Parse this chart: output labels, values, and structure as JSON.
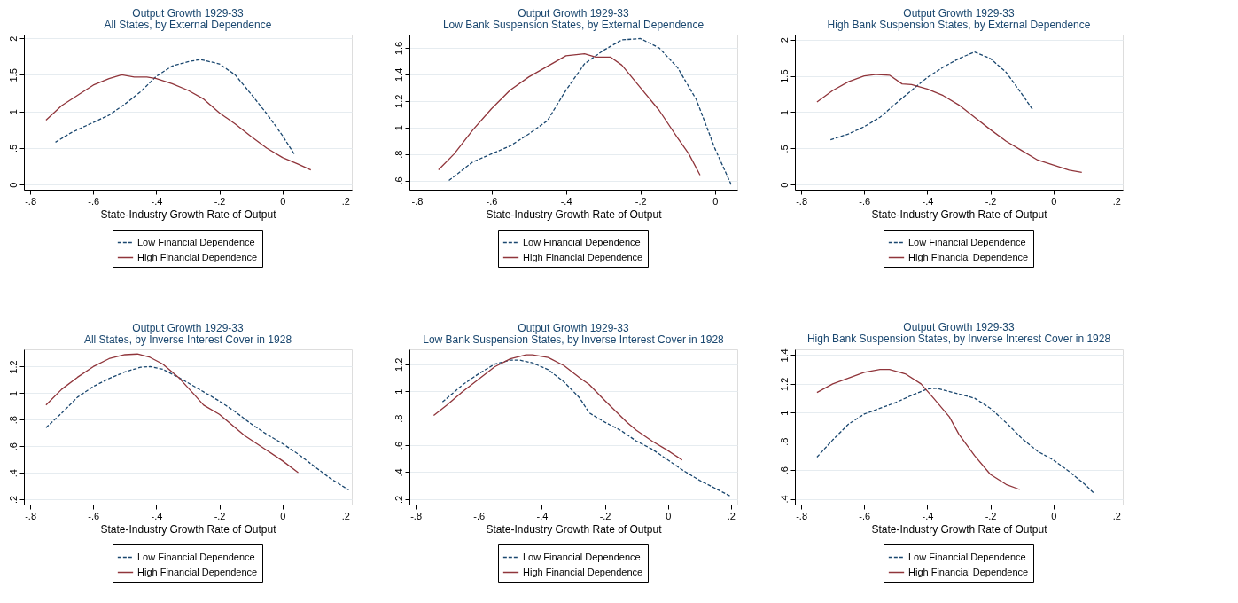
{
  "chart_data": [
    {
      "type": "line",
      "title": "Output Growth 1929-33",
      "subtitle": "All States, by External Dependence",
      "xlabel": "State-Industry Growth Rate of Output",
      "grid": "y",
      "legend": "bottom",
      "marker": "none",
      "xlim": [
        -0.82,
        0.22
      ],
      "xticks": [
        {
          "value": -0.8,
          "label": "-.8"
        },
        {
          "value": -0.6,
          "label": "-.6"
        },
        {
          "value": -0.4,
          "label": "-.4"
        },
        {
          "value": -0.2,
          "label": "-.2"
        },
        0,
        {
          "value": 0.2,
          "label": ".2"
        }
      ],
      "ylim": [
        -0.07,
        2.05
      ],
      "yticks": [
        0,
        {
          "value": 0.5,
          "label": ".5"
        },
        1,
        1.5,
        2
      ],
      "series": [
        {
          "name": "Low Financial Dependence",
          "color": "#1a476f",
          "line_style": "dashed",
          "x": [
            -0.72,
            -0.67,
            -0.6,
            -0.55,
            -0.5,
            -0.45,
            -0.4,
            -0.35,
            -0.3,
            -0.26,
            -0.2,
            -0.15,
            -0.1,
            -0.05,
            0,
            0.04
          ],
          "values": [
            0.58,
            0.71,
            0.85,
            0.95,
            1.1,
            1.27,
            1.48,
            1.62,
            1.68,
            1.71,
            1.65,
            1.5,
            1.24,
            0.97,
            0.67,
            0.4
          ]
        },
        {
          "name": "High Financial Dependence",
          "color": "#90353b",
          "line_style": "solid",
          "x": [
            -0.75,
            -0.7,
            -0.65,
            -0.6,
            -0.55,
            -0.51,
            -0.47,
            -0.43,
            -0.4,
            -0.35,
            -0.3,
            -0.25,
            -0.2,
            -0.15,
            -0.1,
            -0.05,
            0,
            0.05,
            0.09
          ],
          "values": [
            0.88,
            1.08,
            1.22,
            1.36,
            1.45,
            1.5,
            1.47,
            1.47,
            1.45,
            1.38,
            1.29,
            1.17,
            0.98,
            0.83,
            0.66,
            0.5,
            0.37,
            0.28,
            0.2
          ]
        }
      ]
    },
    {
      "type": "line",
      "title": "Output Growth 1929-33",
      "subtitle": "Low Bank Suspension States, by External Dependence",
      "xlabel": "State-Industry Growth Rate of Output",
      "grid": "y",
      "legend": "bottom",
      "marker": "none",
      "xlim": [
        -0.82,
        0.06
      ],
      "xticks": [
        {
          "value": -0.8,
          "label": "-.8"
        },
        {
          "value": -0.6,
          "label": "-.6"
        },
        {
          "value": -0.4,
          "label": "-.4"
        },
        {
          "value": -0.2,
          "label": "-.2"
        },
        0
      ],
      "ylim": [
        0.53,
        1.7
      ],
      "yticks": [
        {
          "value": 0.6,
          "label": ".6"
        },
        {
          "value": 0.8,
          "label": ".8"
        },
        1,
        1.2,
        1.4,
        1.6
      ],
      "series": [
        {
          "name": "Low Financial Dependence",
          "color": "#1a476f",
          "line_style": "dashed",
          "x": [
            -0.714,
            -0.7,
            -0.65,
            -0.6,
            -0.55,
            -0.5,
            -0.45,
            -0.4,
            -0.35,
            -0.3,
            -0.25,
            -0.2,
            -0.15,
            -0.1,
            -0.05,
            0,
            0.045
          ],
          "values": [
            0.6,
            0.63,
            0.74,
            0.8,
            0.86,
            0.95,
            1.05,
            1.28,
            1.48,
            1.58,
            1.66,
            1.67,
            1.6,
            1.45,
            1.21,
            0.84,
            0.56
          ]
        },
        {
          "name": "High Financial Dependence",
          "color": "#90353b",
          "line_style": "solid",
          "x": [
            -0.742,
            -0.7,
            -0.65,
            -0.6,
            -0.55,
            -0.5,
            -0.45,
            -0.4,
            -0.35,
            -0.32,
            -0.28,
            -0.25,
            -0.2,
            -0.15,
            -0.1,
            -0.07,
            -0.04
          ],
          "values": [
            0.68,
            0.8,
            0.98,
            1.14,
            1.28,
            1.38,
            1.46,
            1.54,
            1.555,
            1.53,
            1.53,
            1.47,
            1.3,
            1.13,
            0.92,
            0.8,
            0.64
          ]
        }
      ]
    },
    {
      "type": "line",
      "title": "Output Growth 1929-33",
      "subtitle": "High Bank Suspension States, by External Dependence",
      "xlabel": "State-Industry Growth Rate of Output",
      "grid": "y",
      "legend": "bottom",
      "marker": "none",
      "xlim": [
        -0.82,
        0.22
      ],
      "xticks": [
        {
          "value": -0.8,
          "label": "-.8"
        },
        {
          "value": -0.6,
          "label": "-.6"
        },
        {
          "value": -0.4,
          "label": "-.4"
        },
        {
          "value": -0.2,
          "label": "-.2"
        },
        0,
        {
          "value": 0.2,
          "label": ".2"
        }
      ],
      "ylim": [
        -0.07,
        2.07
      ],
      "yticks": [
        0,
        {
          "value": 0.5,
          "label": ".5"
        },
        1,
        1.5,
        2
      ],
      "series": [
        {
          "name": "Low Financial Dependence",
          "color": "#1a476f",
          "line_style": "dashed",
          "x": [
            -0.707,
            -0.65,
            -0.6,
            -0.55,
            -0.5,
            -0.45,
            -0.4,
            -0.35,
            -0.3,
            -0.25,
            -0.2,
            -0.15,
            -0.1,
            -0.065
          ],
          "values": [
            0.62,
            0.7,
            0.8,
            0.93,
            1.12,
            1.3,
            1.48,
            1.62,
            1.74,
            1.83,
            1.74,
            1.55,
            1.25,
            1.03
          ]
        },
        {
          "name": "High Financial Dependence",
          "color": "#90353b",
          "line_style": "solid",
          "x": [
            -0.75,
            -0.7,
            -0.65,
            -0.6,
            -0.56,
            -0.52,
            -0.48,
            -0.45,
            -0.4,
            -0.35,
            -0.3,
            -0.25,
            -0.2,
            -0.15,
            -0.1,
            -0.05,
            0,
            0.05,
            0.09
          ],
          "values": [
            1.14,
            1.3,
            1.42,
            1.5,
            1.52,
            1.51,
            1.39,
            1.38,
            1.32,
            1.23,
            1.1,
            0.93,
            0.76,
            0.6,
            0.47,
            0.34,
            0.27,
            0.2,
            0.17
          ]
        }
      ]
    },
    {
      "type": "line",
      "title": "Output Growth 1929-33",
      "subtitle": "All States, by Inverse Interest Cover in 1928",
      "xlabel": "State-Industry Growth Rate of Output",
      "grid": "y",
      "legend": "bottom",
      "marker": "none",
      "xlim": [
        -0.82,
        0.22
      ],
      "xticks": [
        {
          "value": -0.8,
          "label": "-.8"
        },
        {
          "value": -0.6,
          "label": "-.6"
        },
        {
          "value": -0.4,
          "label": "-.4"
        },
        {
          "value": -0.2,
          "label": "-.2"
        },
        0,
        {
          "value": 0.2,
          "label": ".2"
        }
      ],
      "ylim": [
        0.16,
        1.33
      ],
      "yticks": [
        {
          "value": 0.2,
          "label": ".2"
        },
        {
          "value": 0.4,
          "label": ".4"
        },
        {
          "value": 0.6,
          "label": ".6"
        },
        {
          "value": 0.8,
          "label": ".8"
        },
        1,
        1.2
      ],
      "series": [
        {
          "name": "Low Financial Dependence",
          "color": "#1a476f",
          "line_style": "dashed",
          "x": [
            -0.75,
            -0.7,
            -0.65,
            -0.6,
            -0.55,
            -0.5,
            -0.45,
            -0.42,
            -0.38,
            -0.33,
            -0.25,
            -0.2,
            -0.15,
            -0.1,
            -0.05,
            0,
            0.05,
            0.1,
            0.15,
            0.21
          ],
          "values": [
            0.74,
            0.85,
            0.97,
            1.05,
            1.11,
            1.16,
            1.195,
            1.2,
            1.18,
            1.12,
            1.01,
            0.94,
            0.86,
            0.77,
            0.69,
            0.62,
            0.54,
            0.45,
            0.36,
            0.27
          ]
        },
        {
          "name": "High Financial Dependence",
          "color": "#90353b",
          "line_style": "solid",
          "x": [
            -0.75,
            -0.7,
            -0.65,
            -0.6,
            -0.55,
            -0.5,
            -0.46,
            -0.42,
            -0.38,
            -0.33,
            -0.28,
            -0.25,
            -0.2,
            -0.15,
            -0.12,
            -0.05,
            0,
            0.05
          ],
          "values": [
            0.91,
            1.03,
            1.12,
            1.2,
            1.26,
            1.29,
            1.295,
            1.27,
            1.22,
            1.12,
            0.99,
            0.91,
            0.84,
            0.74,
            0.68,
            0.57,
            0.49,
            0.4
          ]
        }
      ]
    },
    {
      "type": "line",
      "title": "Output Growth 1929-33",
      "subtitle": "Low Bank Suspension States, by Inverse Interest Cover in 1928",
      "xlabel": "State-Industry Growth Rate of Output",
      "grid": "y",
      "legend": "bottom",
      "marker": "none",
      "xlim": [
        -0.82,
        0.22
      ],
      "xticks": [
        {
          "value": -0.8,
          "label": "-.8"
        },
        {
          "value": -0.6,
          "label": "-.6"
        },
        {
          "value": -0.4,
          "label": "-.4"
        },
        {
          "value": -0.2,
          "label": "-.2"
        },
        0,
        {
          "value": 0.2,
          "label": ".2"
        }
      ],
      "ylim": [
        0.16,
        1.31
      ],
      "yticks": [
        {
          "value": 0.2,
          "label": ".2"
        },
        {
          "value": 0.4,
          "label": ".4"
        },
        {
          "value": 0.6,
          "label": ".6"
        },
        {
          "value": 0.8,
          "label": ".8"
        },
        1,
        1.2
      ],
      "series": [
        {
          "name": "Low Financial Dependence",
          "color": "#1a476f",
          "line_style": "dashed",
          "x": [
            -0.715,
            -0.65,
            -0.6,
            -0.55,
            -0.5,
            -0.47,
            -0.43,
            -0.38,
            -0.33,
            -0.28,
            -0.25,
            -0.2,
            -0.15,
            -0.1,
            -0.05,
            0,
            0.05,
            0.1,
            0.15,
            0.2
          ],
          "values": [
            0.92,
            1.05,
            1.13,
            1.2,
            1.23,
            1.23,
            1.21,
            1.16,
            1.07,
            0.95,
            0.84,
            0.77,
            0.71,
            0.63,
            0.57,
            0.49,
            0.41,
            0.34,
            0.28,
            0.22
          ]
        },
        {
          "name": "High Financial Dependence",
          "color": "#90353b",
          "line_style": "solid",
          "x": [
            -0.743,
            -0.7,
            -0.65,
            -0.6,
            -0.55,
            -0.5,
            -0.45,
            -0.43,
            -0.38,
            -0.33,
            -0.28,
            -0.25,
            -0.2,
            -0.13,
            -0.1,
            -0.05,
            0,
            0.045
          ],
          "values": [
            0.82,
            0.9,
            1.0,
            1.09,
            1.18,
            1.24,
            1.27,
            1.27,
            1.25,
            1.19,
            1.1,
            1.05,
            0.93,
            0.77,
            0.71,
            0.63,
            0.56,
            0.49
          ]
        }
      ]
    },
    {
      "type": "line",
      "title": "Output Growth 1929-33",
      "subtitle": "High Bank Suspension States, by Inverse Interest Cover in 1928",
      "xlabel": "State-Industry Growth Rate of Output",
      "grid": "y",
      "legend": "bottom",
      "marker": "none",
      "xlim": [
        -0.82,
        0.22
      ],
      "xticks": [
        {
          "value": -0.8,
          "label": "-.8"
        },
        {
          "value": -0.6,
          "label": "-.6"
        },
        {
          "value": -0.4,
          "label": "-.4"
        },
        {
          "value": -0.2,
          "label": "-.2"
        },
        0,
        {
          "value": 0.2,
          "label": ".2"
        }
      ],
      "ylim": [
        0.36,
        1.44
      ],
      "yticks": [
        {
          "value": 0.4,
          "label": ".4"
        },
        {
          "value": 0.6,
          "label": ".6"
        },
        {
          "value": 0.8,
          "label": ".8"
        },
        1,
        1.2,
        1.4
      ],
      "series": [
        {
          "name": "Low Financial Dependence",
          "color": "#1a476f",
          "line_style": "dashed",
          "x": [
            -0.75,
            -0.7,
            -0.65,
            -0.6,
            -0.55,
            -0.5,
            -0.45,
            -0.4,
            -0.37,
            -0.3,
            -0.25,
            -0.2,
            -0.15,
            -0.1,
            -0.05,
            0,
            0.05,
            0.1,
            0.128
          ],
          "values": [
            0.69,
            0.81,
            0.92,
            0.99,
            1.03,
            1.07,
            1.12,
            1.165,
            1.17,
            1.13,
            1.1,
            1.03,
            0.93,
            0.82,
            0.73,
            0.67,
            0.59,
            0.5,
            0.44
          ]
        },
        {
          "name": "High Financial Dependence",
          "color": "#90353b",
          "line_style": "solid",
          "x": [
            -0.75,
            -0.7,
            -0.65,
            -0.6,
            -0.55,
            -0.52,
            -0.47,
            -0.42,
            -0.38,
            -0.33,
            -0.3,
            -0.25,
            -0.2,
            -0.15,
            -0.107
          ],
          "values": [
            1.14,
            1.2,
            1.24,
            1.28,
            1.3,
            1.3,
            1.27,
            1.2,
            1.1,
            0.97,
            0.85,
            0.7,
            0.57,
            0.5,
            0.465
          ]
        }
      ]
    }
  ]
}
